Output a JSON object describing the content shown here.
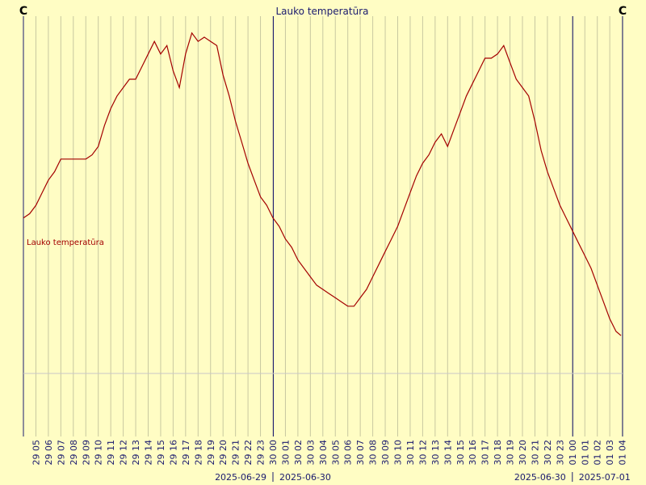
{
  "chart_data": {
    "type": "line",
    "title": "Lauko temperatūra",
    "unit_left": "C",
    "unit_right": "C",
    "series_label": "Lauko temperatūra",
    "colors": {
      "background": "#fffdc4",
      "series": "#a40000",
      "grid": "#c8c8a0",
      "day_line": "#1a1a6e",
      "baseline": "#c8c8c8",
      "text": "#1a1a6e"
    },
    "hour_ticks": [
      "29 05",
      "29 06",
      "29 07",
      "29 08",
      "29 09",
      "29 10",
      "29 11",
      "29 12",
      "29 13",
      "29 14",
      "29 15",
      "29 16",
      "29 17",
      "29 18",
      "29 19",
      "29 20",
      "29 21",
      "29 22",
      "29 23",
      "30 00",
      "30 01",
      "30 02",
      "30 03",
      "30 04",
      "30 05",
      "30 06",
      "30 07",
      "30 08",
      "30 09",
      "30 10",
      "30 11",
      "30 12",
      "30 13",
      "30 14",
      "30 15",
      "30 16",
      "30 17",
      "30 18",
      "30 19",
      "30 20",
      "30 21",
      "30 22",
      "30 23",
      "01 00",
      "01 01",
      "01 02",
      "01 03",
      "01 04"
    ],
    "day_boundaries": [
      "30 00",
      "01 00"
    ],
    "date_labels": [
      {
        "left": "2025-06-29",
        "right": "2025-06-30",
        "at": "30 00"
      },
      {
        "left": "2025-06-30",
        "right": "2025-07-01",
        "at": "01 00"
      }
    ],
    "x_start_hours": 4.5,
    "x_end_hours": 52.4,
    "y_range": [
      0,
      100
    ],
    "baseline": 10,
    "points": [
      [
        4.5,
        47
      ],
      [
        5.0,
        48
      ],
      [
        5.5,
        50
      ],
      [
        6.0,
        53
      ],
      [
        6.5,
        56
      ],
      [
        7.0,
        58
      ],
      [
        7.5,
        61
      ],
      [
        8.0,
        61
      ],
      [
        8.5,
        61
      ],
      [
        9.0,
        61
      ],
      [
        9.5,
        61
      ],
      [
        10.0,
        62
      ],
      [
        10.5,
        64
      ],
      [
        11.0,
        69
      ],
      [
        11.5,
        73
      ],
      [
        12.0,
        76
      ],
      [
        12.5,
        78
      ],
      [
        13.0,
        80
      ],
      [
        13.5,
        80
      ],
      [
        14.0,
        83
      ],
      [
        14.5,
        86
      ],
      [
        15.0,
        89
      ],
      [
        15.5,
        86
      ],
      [
        16.0,
        88
      ],
      [
        16.5,
        82
      ],
      [
        17.0,
        78
      ],
      [
        17.5,
        86
      ],
      [
        18.0,
        91
      ],
      [
        18.5,
        89
      ],
      [
        19.0,
        90
      ],
      [
        19.5,
        89
      ],
      [
        20.0,
        88
      ],
      [
        20.5,
        81
      ],
      [
        21.0,
        76
      ],
      [
        21.5,
        70
      ],
      [
        22.0,
        65
      ],
      [
        22.5,
        60
      ],
      [
        23.0,
        56
      ],
      [
        23.5,
        52
      ],
      [
        24.0,
        50
      ],
      [
        24.5,
        47
      ],
      [
        25.0,
        45
      ],
      [
        25.5,
        42
      ],
      [
        26.0,
        40
      ],
      [
        26.5,
        37
      ],
      [
        27.0,
        35
      ],
      [
        27.5,
        33
      ],
      [
        28.0,
        31
      ],
      [
        28.5,
        30
      ],
      [
        29.0,
        29
      ],
      [
        29.5,
        28
      ],
      [
        30.0,
        27
      ],
      [
        30.5,
        26
      ],
      [
        31.0,
        26
      ],
      [
        31.5,
        28
      ],
      [
        32.0,
        30
      ],
      [
        32.5,
        33
      ],
      [
        33.0,
        36
      ],
      [
        33.5,
        39
      ],
      [
        34.0,
        42
      ],
      [
        34.5,
        45
      ],
      [
        35.0,
        49
      ],
      [
        35.5,
        53
      ],
      [
        36.0,
        57
      ],
      [
        36.5,
        60
      ],
      [
        37.0,
        62
      ],
      [
        37.5,
        65
      ],
      [
        38.0,
        67
      ],
      [
        38.5,
        64
      ],
      [
        39.0,
        68
      ],
      [
        39.5,
        72
      ],
      [
        40.0,
        76
      ],
      [
        40.5,
        79
      ],
      [
        41.0,
        82
      ],
      [
        41.5,
        85
      ],
      [
        42.0,
        85
      ],
      [
        42.5,
        86
      ],
      [
        43.0,
        88
      ],
      [
        43.5,
        84
      ],
      [
        44.0,
        80
      ],
      [
        44.5,
        78
      ],
      [
        45.0,
        76
      ],
      [
        45.5,
        70
      ],
      [
        46.0,
        63
      ],
      [
        46.5,
        58
      ],
      [
        47.0,
        54
      ],
      [
        47.5,
        50
      ],
      [
        48.0,
        47
      ],
      [
        48.5,
        44
      ],
      [
        49.0,
        41
      ],
      [
        49.5,
        38
      ],
      [
        50.0,
        35
      ],
      [
        50.5,
        31
      ],
      [
        51.0,
        27
      ],
      [
        51.5,
        23
      ],
      [
        52.0,
        20
      ],
      [
        52.4,
        19
      ]
    ]
  }
}
